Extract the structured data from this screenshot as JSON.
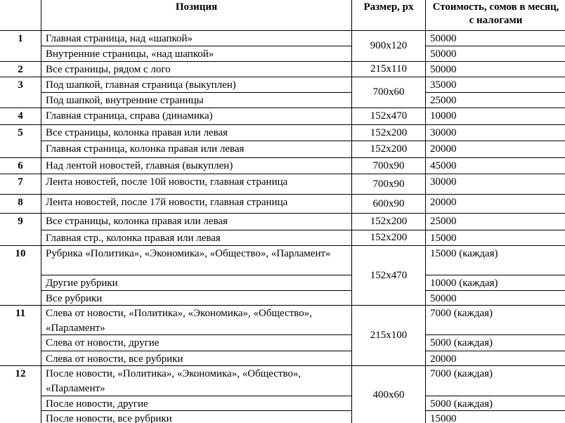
{
  "header": {
    "number": "",
    "position": "Позиция",
    "size": "Размер, px",
    "cost": "Стоимость, сомов в месяц, с налогами"
  },
  "groups": [
    {
      "num": "1",
      "size": "900x120",
      "items": [
        {
          "position": "Главная страница, над «шапкой»",
          "cost": "50000"
        },
        {
          "position": "Внутренние страницы, «над шапкой»",
          "cost": "50000"
        }
      ]
    },
    {
      "num": "2",
      "size": "215x110",
      "items": [
        {
          "position": "Все страницы, рядом с лого",
          "cost": "50000"
        }
      ]
    },
    {
      "num": "3",
      "size": "700x60",
      "items": [
        {
          "position": "Под шапкой, главная страница (выкуплен)",
          "cost": "35000"
        },
        {
          "position": "Под шапкой, внутренние страницы",
          "cost": "25000"
        }
      ]
    },
    {
      "num": "4",
      "size": "152x470",
      "items": [
        {
          "position": "Главная страница, справа (динамика)",
          "cost": "10000"
        }
      ]
    },
    {
      "num": "5",
      "items": [
        {
          "position": "Все страницы, колонка правая или левая",
          "size": "152x200",
          "cost": "30000"
        },
        {
          "position": "Главная страница, колонка правая или левая",
          "size": "152x200",
          "cost": "20000"
        }
      ]
    },
    {
      "num": "6",
      "size": "700x90",
      "items": [
        {
          "position": "Над лентой новостей, главная (выкуплен)",
          "cost": "45000"
        }
      ]
    },
    {
      "num": "7",
      "size": "700x90",
      "items": [
        {
          "position": "Лента новостей, после 10й новости, главная страница",
          "cost": "30000"
        }
      ]
    },
    {
      "num": "8",
      "size": "600x90",
      "items": [
        {
          "position": "Лента новостей, после 17й новости, главная страница",
          "cost": "20000"
        }
      ]
    },
    {
      "num": "9",
      "items": [
        {
          "position": "Все страницы, колонка правая или левая",
          "size": "152x200",
          "cost": "25000"
        },
        {
          "position": "Главная стр., колонка правая или левая",
          "size": "152x200",
          "cost": "15000"
        }
      ]
    },
    {
      "num": "10",
      "size": "152x470",
      "items": [
        {
          "position": "Рубрика «Политика», «Экономика», «Общество», «Парламент»",
          "cost": "15000 (каждая)"
        },
        {
          "position": "Другие рубрики",
          "cost": "10000 (каждая)"
        },
        {
          "position": "Все рубрики",
          "cost": "50000"
        }
      ]
    },
    {
      "num": "11",
      "size": "215x100",
      "items": [
        {
          "position": "Слева от новости, «Политика», «Экономика», «Общество», «Парламент»",
          "cost": "7000 (каждая)"
        },
        {
          "position": "Слева от новости, другие",
          "cost": "5000 (каждая)"
        },
        {
          "position": "Слева от новости, все рубрики",
          "cost": "20000"
        }
      ]
    },
    {
      "num": "12",
      "size": "400x60",
      "items": [
        {
          "position": "После новости, «Политика», «Экономика», «Общество», «Парламент»",
          "cost": "7000 (каждая)"
        },
        {
          "position": "После новости, другие",
          "cost": "5000 (каждая)"
        },
        {
          "position": "После новости, все рубрики",
          "cost": "15000"
        }
      ]
    }
  ]
}
